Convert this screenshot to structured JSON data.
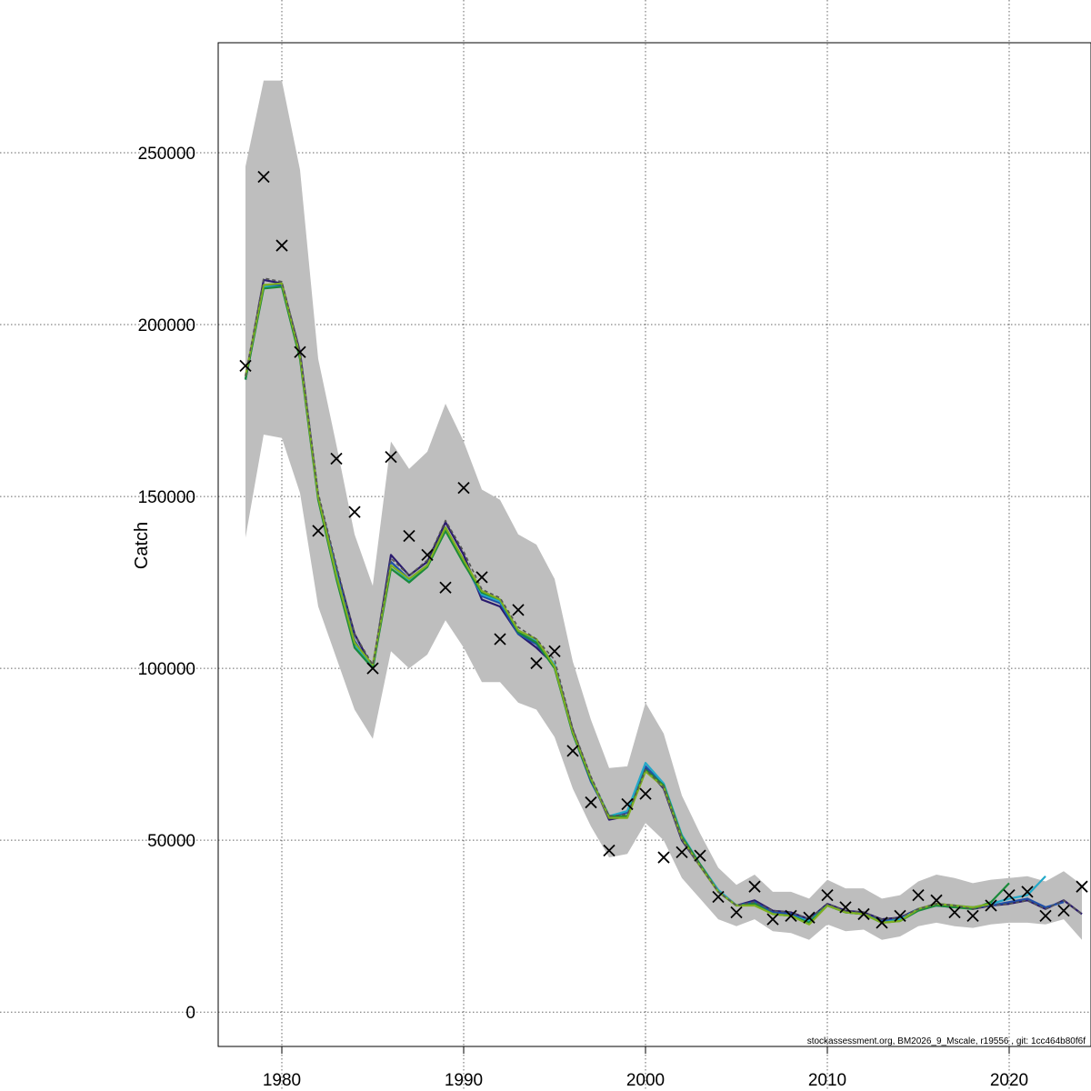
{
  "chart_data": {
    "type": "line",
    "title": "",
    "xlabel": "",
    "ylabel": "Catch",
    "xlim": [
      1976.5,
      2024.5
    ],
    "ylim": [
      -10000,
      282000
    ],
    "x_ticks": [
      1980,
      1990,
      2000,
      2010,
      2020
    ],
    "y_ticks": [
      0,
      50000,
      100000,
      150000,
      200000,
      250000
    ],
    "x_tick_labels": [
      "1980",
      "1990",
      "2000",
      "2010",
      "2020"
    ],
    "y_tick_labels": [
      "0",
      "50000",
      "100000",
      "150000",
      "200000",
      "250000"
    ],
    "grid": true,
    "footer": "stockassessment.org, BM2026_9_Mscale, r19556 , git: 1cc464b80f6f",
    "colors": {
      "band": "#bebebe",
      "observed": "#000000",
      "grid": "#666666",
      "series": [
        "#2a1a6e",
        "#1f4fa8",
        "#22a8c8",
        "#1a8a3a",
        "#7fb020",
        "#555555"
      ]
    },
    "years": [
      1978,
      1979,
      1980,
      1981,
      1982,
      1983,
      1984,
      1985,
      1986,
      1987,
      1988,
      1989,
      1990,
      1991,
      1992,
      1993,
      1994,
      1995,
      1996,
      1997,
      1998,
      1999,
      2000,
      2001,
      2002,
      2003,
      2004,
      2005,
      2006,
      2007,
      2008,
      2009,
      2010,
      2011,
      2012,
      2013,
      2014,
      2015,
      2016,
      2017,
      2018,
      2019,
      2020,
      2021,
      2022,
      2023,
      2024
    ],
    "upper": [
      246000,
      271000,
      271000,
      245000,
      190000,
      165000,
      139000,
      124000,
      166000,
      158000,
      163000,
      177000,
      166000,
      152000,
      149000,
      139000,
      136000,
      126000,
      102000,
      85000,
      71000,
      71500,
      90000,
      81000,
      63000,
      52000,
      42000,
      37000,
      40000,
      35000,
      35000,
      33000,
      38500,
      36000,
      36000,
      33000,
      34000,
      38000,
      40000,
      39000,
      37500,
      38500,
      39000,
      39500,
      38000,
      41000,
      37000
    ],
    "lower": [
      138000,
      168000,
      167000,
      151000,
      118000,
      103000,
      88000,
      79500,
      105000,
      100000,
      104000,
      114000,
      106000,
      96000,
      96000,
      90000,
      88000,
      80000,
      65000,
      54000,
      45000,
      46000,
      55000,
      50000,
      39000,
      33000,
      27000,
      25000,
      27000,
      23500,
      23000,
      21000,
      25500,
      23500,
      24000,
      21000,
      22000,
      25000,
      26000,
      25000,
      24500,
      25500,
      26000,
      26000,
      25500,
      27000,
      21000
    ],
    "observed": [
      188000,
      243000,
      223000,
      192000,
      140000,
      161000,
      145500,
      100000,
      161500,
      138500,
      133000,
      123500,
      152500,
      126500,
      108500,
      117000,
      101500,
      105000,
      76000,
      61000,
      47000,
      60500,
      63500,
      45000,
      46500,
      45500,
      33500,
      29000,
      36500,
      27000,
      28000,
      27500,
      34000,
      30500,
      28500,
      26000,
      28000,
      34000,
      32500,
      29000,
      28000,
      31000,
      34000,
      35000,
      28000,
      29500,
      36500
    ],
    "series": [
      {
        "values": [
          184000,
          213000,
          212000,
          192000,
          150000,
          129000,
          110000,
          100000,
          133000,
          127000,
          131000,
          142500,
          133000,
          120000,
          118000,
          110000,
          106000,
          101000,
          82000,
          68000,
          56000,
          57000,
          71000,
          65000,
          50000,
          42500,
          35000,
          31000,
          32500,
          29500,
          29000,
          27000,
          31500,
          29500,
          29000,
          27000,
          27500,
          30000,
          31500,
          31000,
          30000,
          31000,
          31500,
          32500,
          30000,
          32500,
          28500
        ]
      },
      {
        "values": [
          184000,
          211500,
          211500,
          191000,
          150000,
          128000,
          108000,
          100000,
          131000,
          126000,
          130000,
          141000,
          131000,
          121000,
          119000,
          110000,
          107000,
          100500,
          81000,
          67000,
          57000,
          58000,
          71500,
          66000,
          51000,
          43000,
          35500,
          31000,
          32000,
          29000,
          28500,
          26500,
          31000,
          29000,
          28500,
          26500,
          27000,
          30000,
          31000,
          30500,
          30500,
          31000,
          32000,
          33000,
          30500,
          32000
        ]
      },
      {
        "values": [
          184000,
          211000,
          211000,
          190500,
          150000,
          127500,
          107000,
          100000,
          130000,
          125500,
          130000,
          140000,
          131000,
          121500,
          119500,
          111000,
          108000,
          101000,
          81000,
          68000,
          57000,
          58500,
          72500,
          66500,
          51500,
          43000,
          35500,
          31000,
          31500,
          28500,
          28000,
          26500,
          31000,
          29000,
          28500,
          26000,
          27000,
          30000,
          31000,
          31000,
          30500,
          31500,
          33000,
          34000,
          39500
        ]
      },
      {
        "values": [
          184000,
          210500,
          211000,
          190000,
          149000,
          126000,
          106000,
          100000,
          129000,
          125000,
          129500,
          140000,
          130500,
          122000,
          120000,
          110500,
          107500,
          100000,
          81000,
          67500,
          57000,
          57000,
          70500,
          66000,
          51000,
          43000,
          35000,
          31000,
          31500,
          28500,
          28000,
          26000,
          31000,
          29000,
          28500,
          26000,
          26500,
          29500,
          31000,
          30500,
          30000,
          32000,
          37500
        ]
      },
      {
        "values": [
          185000,
          211500,
          212000,
          191000,
          150000,
          127000,
          107500,
          101000,
          130000,
          126000,
          130000,
          141000,
          131500,
          122500,
          120000,
          111000,
          108500,
          100500,
          81500,
          68000,
          56500,
          56500,
          70000,
          65500,
          50500,
          42500,
          35000,
          31000,
          31000,
          28500,
          28000,
          25500,
          31000,
          29000,
          28500,
          26000,
          26500,
          30000,
          31500,
          31000,
          30500,
          31500
        ]
      },
      {
        "values": [
          185000,
          213500,
          212500,
          192000,
          151000,
          130000,
          110000,
          101000,
          132000,
          127000,
          131500,
          143000,
          134000,
          123000,
          120500,
          112000,
          108500,
          102500,
          82500,
          68500,
          57000,
          57500,
          70500,
          65500,
          50500,
          42500,
          35000,
          31000,
          32000,
          29500,
          29000,
          27000,
          31500,
          29500,
          29000,
          27000,
          27500,
          30000,
          31500,
          31000,
          30000,
          31000,
          31500,
          32500,
          30000,
          32500,
          28500
        ]
      }
    ]
  }
}
